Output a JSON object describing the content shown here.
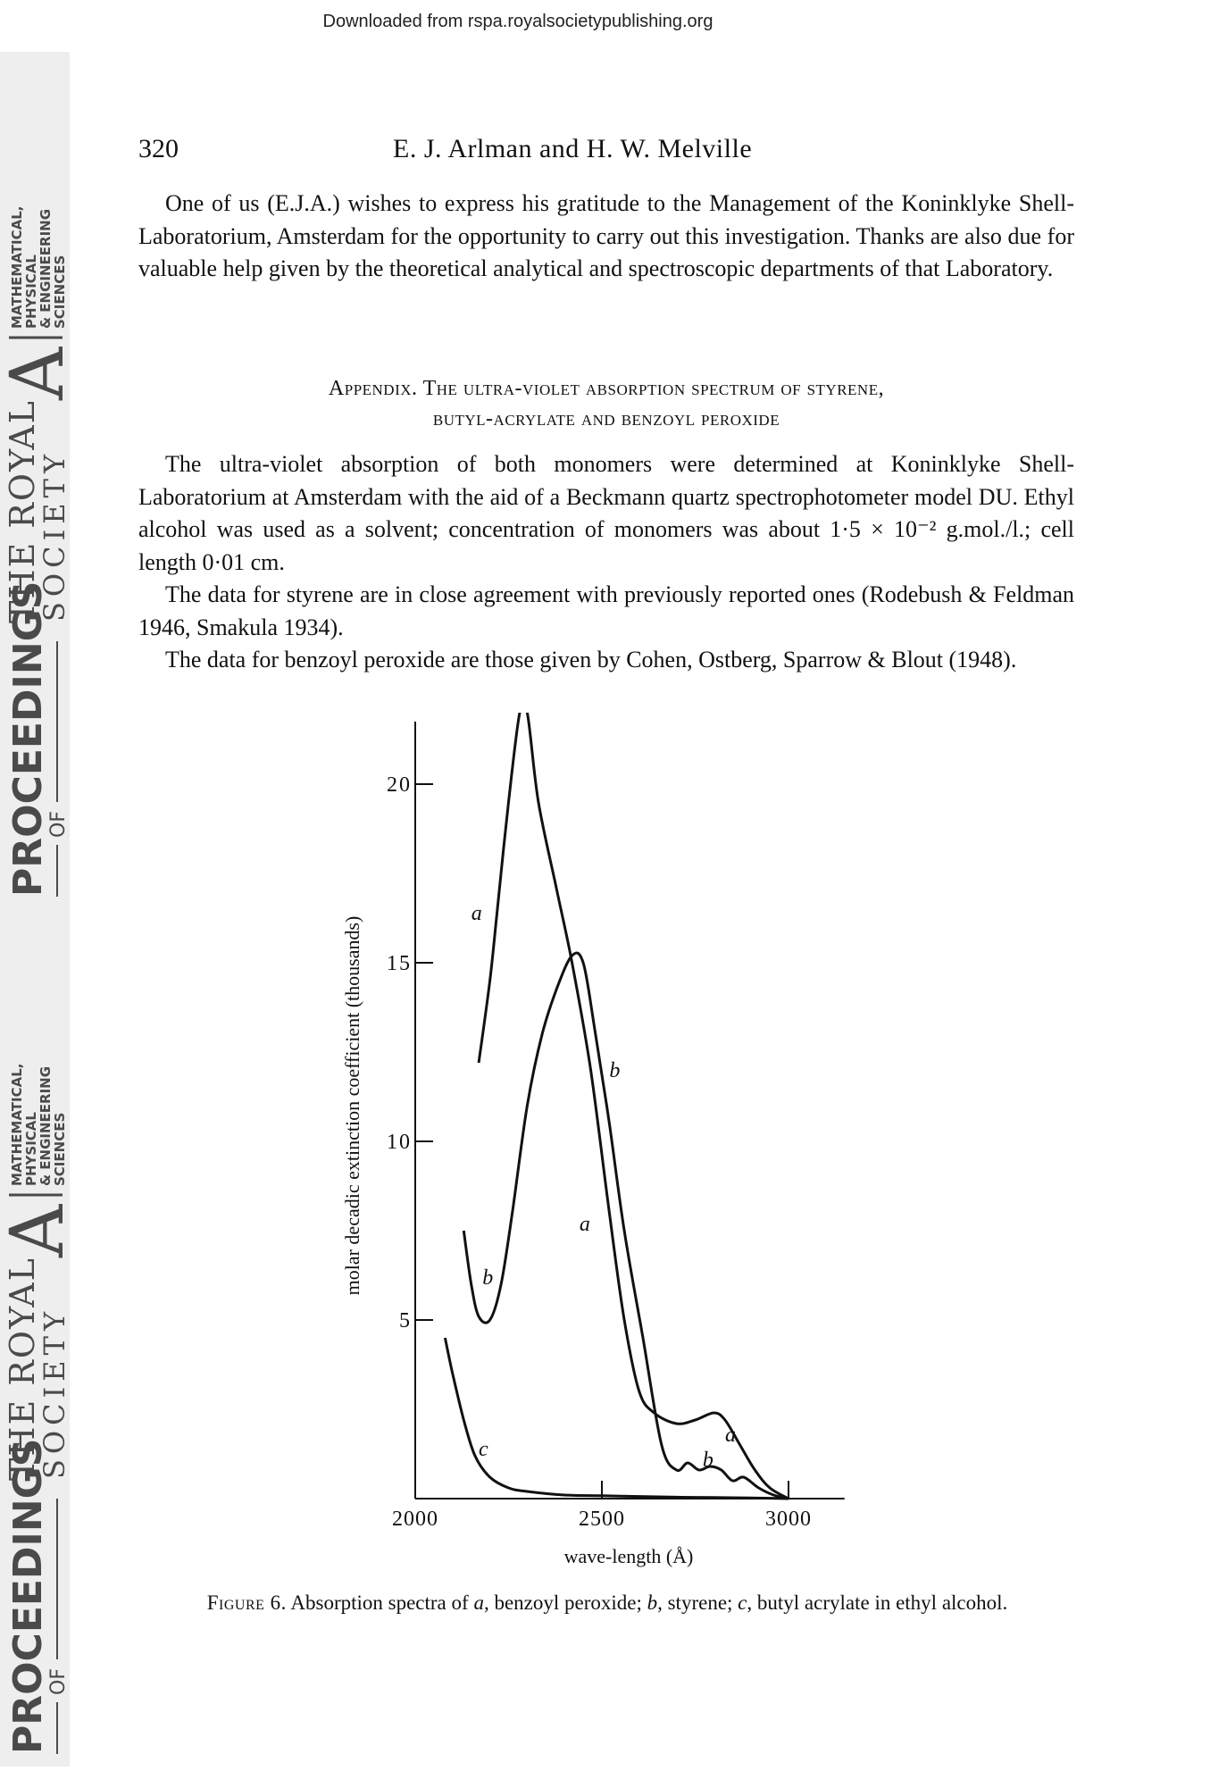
{
  "download_notice": "Downloaded from rspa.royalsocietypublishing.org",
  "sidebar": {
    "proceedings": "PROCEEDINGS",
    "of": "OF",
    "the_royal": "THE ROYAL",
    "society": "SOCIETY",
    "a_letter": "A",
    "math_lines": [
      "MATHEMATICAL,",
      "PHYSICAL",
      "& ENGINEERING",
      "SCIENCES"
    ]
  },
  "header": {
    "page_number": "320",
    "authors": "E. J. Arlman and H. W. Melville"
  },
  "acknowledgement": "One of us (E.J.A.) wishes to express his gratitude to the Management of the Koninklyke Shell-Laboratorium, Amsterdam for the opportunity to carry out this investigation. Thanks are also due for valuable help given by the theoretical analytical and spectroscopic departments of that Laboratory.",
  "appendix": {
    "title_line1": "Appendix. The ultra-violet absorption spectrum of styrene,",
    "title_line2": "butyl-acrylate and benzoyl peroxide",
    "paragraph1": "The ultra-violet absorption of both monomers were determined at Koninklyke Shell-Laboratorium at Amsterdam with the aid of a Beckmann quartz spectrophotometer model DU. Ethyl alcohol was used as a solvent; concentration of monomers was about 1·5 × 10⁻² g.mol./l.; cell length 0·01 cm.",
    "paragraph2": "The data for styrene are in close agreement with previously reported ones (Rodebush & Feldman 1946, Smakula 1934).",
    "paragraph3": "The data for benzoyl peroxide are those given by Cohen, Ostberg, Sparrow & Blout (1948)."
  },
  "chart_data": {
    "type": "line",
    "xlabel": "wave-length (Å)",
    "ylabel": "molar decadic extinction coefficient (thousands)",
    "x_ticks": [
      "2000",
      "2500",
      "3000"
    ],
    "y_ticks": [
      "5",
      "10",
      "15",
      "20"
    ],
    "xlim": [
      2000,
      3200
    ],
    "ylim": [
      0,
      22
    ],
    "grid": false,
    "series": [
      {
        "name": "a",
        "x": [
          2170,
          2200,
          2220,
          2250,
          2280,
          2300,
          2330,
          2380,
          2420,
          2470,
          2520,
          2560,
          2600,
          2640,
          2700,
          2750,
          2800,
          2830,
          2870,
          2910,
          2950,
          3000
        ],
        "y": [
          12.2,
          14.5,
          16.5,
          19.5,
          22,
          22,
          19.5,
          17.0,
          15.0,
          12.0,
          8.0,
          5.0,
          3.0,
          2.4,
          2.1,
          2.2,
          2.4,
          2.2,
          1.5,
          0.8,
          0.3,
          0.0
        ]
      },
      {
        "name": "b",
        "x": [
          2130,
          2150,
          2170,
          2200,
          2230,
          2260,
          2300,
          2340,
          2380,
          2420,
          2450,
          2480,
          2520,
          2560,
          2610,
          2660,
          2700,
          2730,
          2760,
          2790,
          2820,
          2850,
          2880,
          2920,
          2960,
          3000
        ],
        "y": [
          7.5,
          6.0,
          5.1,
          5.0,
          6.0,
          8.0,
          11.0,
          13.0,
          14.3,
          15.2,
          15.0,
          13.2,
          10.5,
          7.5,
          4.5,
          1.5,
          0.8,
          1.0,
          0.8,
          0.9,
          0.8,
          0.5,
          0.6,
          0.3,
          0.1,
          0.0
        ]
      },
      {
        "name": "c",
        "x": [
          2080,
          2100,
          2130,
          2160,
          2200,
          2250,
          2300,
          2400,
          2500,
          2600,
          2700,
          2800,
          2900,
          3000
        ],
        "y": [
          4.5,
          3.5,
          2.2,
          1.2,
          0.6,
          0.3,
          0.2,
          0.1,
          0.08,
          0.06,
          0.04,
          0.03,
          0.02,
          0.0
        ]
      }
    ],
    "curve_labels": [
      {
        "series": "a",
        "text": "a"
      },
      {
        "series": "a",
        "text": "a"
      },
      {
        "series": "a",
        "text": "a"
      },
      {
        "series": "b",
        "text": "b"
      },
      {
        "series": "b",
        "text": "b"
      },
      {
        "series": "b",
        "text": "b"
      },
      {
        "series": "c",
        "text": "c"
      }
    ]
  },
  "caption": {
    "label": "Figure 6.",
    "text_html": "Absorption spectra of <i>a</i>, benzoyl peroxide; <i>b</i>, styrene; <i>c</i>, butyl acrylate in ethyl alcohol."
  }
}
